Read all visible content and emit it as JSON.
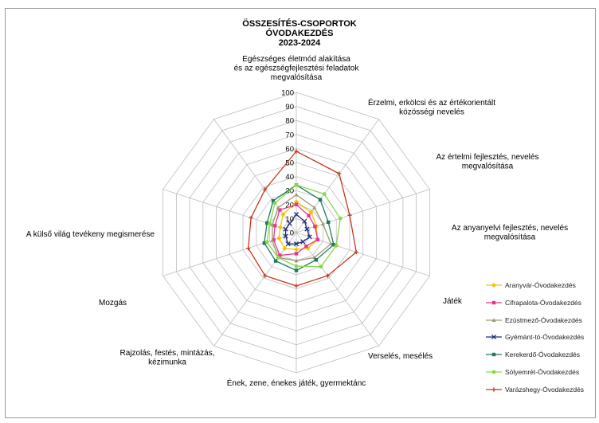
{
  "chart_data": {
    "type": "radar",
    "title_lines": [
      "ÖSSZESÍTÉS-CSOPORTOK",
      "ÓVODAKEZDÉS",
      "2023-2024"
    ],
    "categories": [
      {
        "lines": [
          "Egészséges életmód alakítása",
          "és az egészségfejlesztési feladatok",
          "megvalósítása"
        ]
      },
      {
        "lines": [
          "Érzelmi, erkölcsi és az értékorientált",
          "közösségi  nevelés"
        ]
      },
      {
        "lines": [
          "Az értelmi fejlesztés, nevelés",
          "megvalósítása"
        ]
      },
      {
        "lines": [
          "Az anyanyelvi fejlesztés, nevelés",
          "megvalósítása"
        ]
      },
      {
        "lines": [
          "Játék"
        ]
      },
      {
        "lines": [
          "Verselés, mesélés"
        ]
      },
      {
        "lines": [
          "Ének, zene, énekes játék, gyermektánc"
        ]
      },
      {
        "lines": [
          "Rajzolás, festés, mintázás,",
          "kézimunka"
        ]
      },
      {
        "lines": [
          "Mozgás"
        ]
      },
      {
        "lines": [
          "A külső világ tevékeny megismerése"
        ]
      }
    ],
    "radial_ticks": [
      "0",
      "10",
      "20",
      "30",
      "40",
      "50",
      "60",
      "70",
      "80",
      "90",
      "100"
    ],
    "rmax": 100,
    "series": [
      {
        "name": "Aranyvár-Óvodakezdés",
        "color": "#f2c200",
        "marker": "diamond",
        "values": [
          22,
          18,
          15,
          16,
          14,
          12,
          14,
          13,
          12,
          16
        ]
      },
      {
        "name": "Cifrapalota-Óvodakezdés",
        "color": "#e8368f",
        "marker": "square",
        "values": [
          20,
          15,
          14,
          16,
          12,
          15,
          20,
          17,
          16,
          20
        ]
      },
      {
        "name": "Ezüstmező-Óvodakezdés",
        "color": "#9c9a74",
        "marker": "triangle",
        "values": [
          27,
          22,
          20,
          26,
          22,
          20,
          22,
          18,
          18,
          22
        ]
      },
      {
        "name": "Gyémánt-tó-Óvodakezdés",
        "color": "#1f2d7a",
        "marker": "x",
        "values": [
          13,
          10,
          8,
          10,
          8,
          8,
          10,
          8,
          8,
          8
        ]
      },
      {
        "name": "Kerekerdő-Óvodakezdés",
        "color": "#1b7a5e",
        "marker": "square",
        "values": [
          34,
          29,
          24,
          28,
          24,
          27,
          25,
          24,
          22,
          28
        ]
      },
      {
        "name": "Sólyemrét-Óvodakezdés",
        "color": "#8ad64a",
        "marker": "circle",
        "values": [
          34,
          34,
          33,
          30,
          30,
          24,
          22,
          22,
          20,
          26
        ]
      },
      {
        "name": "Varázshegy-Óvodakezdés",
        "color": "#c8371e",
        "marker": "plus",
        "values": [
          58,
          52,
          40,
          45,
          38,
          38,
          38,
          36,
          34,
          38
        ]
      }
    ]
  }
}
